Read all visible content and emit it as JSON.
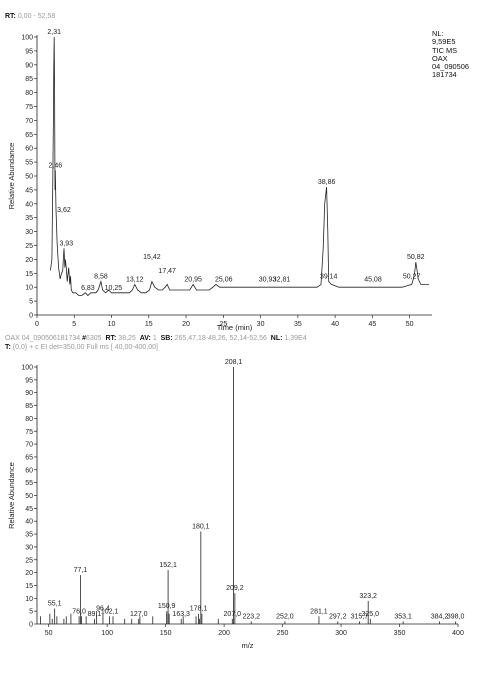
{
  "chromatogram": {
    "rt_label": "RT:",
    "rt_range": "0,00 - 52,58",
    "nl_info": [
      "NL:",
      "9,59E5",
      "TIC MS",
      "OAX",
      "04_090506",
      "181734"
    ]
  },
  "spectrum": {
    "line1": {
      "file": "OAX 04_090506181734",
      "scan_prefix": "#",
      "scan": "6305",
      "rt_label": "RT:",
      "rt": "38,25",
      "av_label": "AV:",
      "av": "1",
      "sb_label": "SB:",
      "sb": "265,47,18-48,26, 52,14-52,56",
      "nl_label": "NL:",
      "nl": "1,39E4"
    },
    "line2": {
      "t_label": "T:",
      "filter": "{0,0} + c EI det=350,00 Full ms [ 40,00-400,00]"
    }
  },
  "chart_data": [
    {
      "type": "line",
      "title": "",
      "xlabel": "Time (min)",
      "ylabel": "Relative Abundance",
      "xlim": [
        0,
        53
      ],
      "ylim": [
        0,
        100
      ],
      "xticks": [
        0,
        5,
        10,
        15,
        20,
        25,
        30,
        35,
        40,
        45,
        50
      ],
      "yticks": [
        0,
        5,
        10,
        15,
        20,
        25,
        30,
        35,
        40,
        45,
        50,
        55,
        60,
        65,
        70,
        75,
        80,
        85,
        90,
        95,
        100
      ],
      "series": [
        {
          "x": [
            1.8,
            2.0,
            2.1,
            2.2,
            2.25,
            2.31,
            2.36,
            2.41,
            2.46,
            2.55,
            2.7,
            2.9,
            3.1,
            3.3,
            3.45,
            3.62,
            3.75,
            3.8,
            3.93,
            4.05,
            4.25,
            4.4,
            4.5,
            4.6,
            4.8,
            5.2,
            5.6,
            6.0,
            6.5,
            6.83,
            7.2,
            7.6,
            7.9,
            8.2,
            8.58,
            8.8,
            9.2,
            9.6,
            10.0,
            10.25,
            10.6,
            11.2,
            11.8,
            12.4,
            12.8,
            13.12,
            13.5,
            14.0,
            14.6,
            15.1,
            15.42,
            15.8,
            16.3,
            16.8,
            17.2,
            17.47,
            17.8,
            18.3,
            18.8,
            19.4,
            20.0,
            20.5,
            20.95,
            21.4,
            22.0,
            22.6,
            23.1,
            23.6,
            24.0,
            24.5,
            25.06,
            25.8,
            27.0,
            28.5,
            30.0,
            30.93,
            32.0,
            32.81,
            34.0,
            35.5,
            36.8,
            37.6,
            38.1,
            38.4,
            38.6,
            38.86,
            39.02,
            39.14,
            39.5,
            40.5,
            42.0,
            43.5,
            45.08,
            46.5,
            48.0,
            49.0,
            50.27,
            50.5,
            50.7,
            50.82,
            50.95,
            51.15,
            51.5,
            52.0,
            52.58
          ],
          "y": [
            16,
            20,
            45,
            70,
            90,
            100,
            80,
            45,
            52,
            38,
            26,
            17,
            13,
            15,
            16,
            24,
            17,
            20,
            17,
            12,
            17,
            11,
            14,
            9,
            8,
            8,
            7,
            7,
            8,
            7,
            8,
            8,
            8,
            9,
            12,
            9,
            8,
            9,
            8,
            8,
            8,
            8,
            8,
            8,
            9,
            11,
            9,
            8,
            8,
            9,
            12,
            10,
            9,
            9,
            10,
            11,
            9,
            9,
            9,
            9,
            9,
            9,
            11,
            9,
            9,
            9,
            9,
            10,
            11,
            10,
            10,
            10,
            10,
            10,
            10,
            10,
            10,
            10,
            10,
            10,
            10,
            10,
            11,
            24,
            40,
            46,
            30,
            12,
            11,
            10,
            10,
            10,
            10,
            10,
            10,
            10,
            11,
            13,
            16,
            19,
            17,
            13,
            11,
            11,
            11
          ]
        }
      ],
      "peak_labels": [
        {
          "x": 2.31,
          "y": 100,
          "label": "2,31"
        },
        {
          "x": 2.46,
          "y": 52,
          "label": "2,46"
        },
        {
          "x": 3.62,
          "y": 36,
          "label": "3,62"
        },
        {
          "x": 3.93,
          "y": 24,
          "label": "3,93"
        },
        {
          "x": 6.83,
          "y": 8,
          "label": "6,83"
        },
        {
          "x": 8.58,
          "y": 12,
          "label": "8,58"
        },
        {
          "x": 10.25,
          "y": 8,
          "label": "10,25"
        },
        {
          "x": 13.12,
          "y": 11,
          "label": "13,12"
        },
        {
          "x": 15.42,
          "y": 19,
          "label": "15,42"
        },
        {
          "x": 17.47,
          "y": 14,
          "label": "17,47"
        },
        {
          "x": 20.95,
          "y": 11,
          "label": "20,95"
        },
        {
          "x": 25.06,
          "y": 11,
          "label": "25,06"
        },
        {
          "x": 30.93,
          "y": 11,
          "label": "30,93"
        },
        {
          "x": 32.81,
          "y": 11,
          "label": "32,81"
        },
        {
          "x": 38.86,
          "y": 46,
          "label": "38,86"
        },
        {
          "x": 39.14,
          "y": 12,
          "label": "39,14"
        },
        {
          "x": 45.08,
          "y": 11,
          "label": "45,08"
        },
        {
          "x": 50.27,
          "y": 12,
          "label": "50,27"
        },
        {
          "x": 50.82,
          "y": 19,
          "label": "50,82"
        }
      ]
    },
    {
      "type": "bar",
      "title": "",
      "xlabel": "m/z",
      "ylabel": "Relative Abundance",
      "xlim": [
        40,
        400
      ],
      "ylim": [
        0,
        100
      ],
      "xticks": [
        50,
        100,
        150,
        200,
        250,
        300,
        350,
        400
      ],
      "yticks": [
        0,
        5,
        10,
        15,
        20,
        25,
        30,
        35,
        40,
        45,
        50,
        55,
        60,
        65,
        70,
        75,
        80,
        85,
        90,
        95,
        100
      ],
      "peaks": {
        "mz": [
          43,
          51,
          53,
          55.1,
          57,
          63,
          65,
          69,
          76.0,
          77.1,
          78,
          82,
          89.1,
          91,
          96.4,
          102.1,
          105,
          115,
          121,
          127.0,
          128,
          139,
          150.9,
          151,
          152.1,
          153,
          163.3,
          165,
          176,
          178.1,
          179,
          180.1,
          181,
          195,
          207.0,
          208.1,
          209.2,
          223.2,
          252.0,
          281.1,
          297.2,
          315.7,
          323.2,
          325.0,
          353.1,
          384.2,
          398.0
        ],
        "intensity": [
          3,
          4,
          2,
          6,
          3,
          2,
          3,
          4,
          3,
          19,
          3,
          3,
          2,
          5,
          4,
          3,
          3,
          2,
          2,
          2,
          3,
          3,
          4,
          5,
          21,
          4,
          2,
          3,
          3,
          4,
          2,
          36,
          4,
          2,
          2,
          100,
          12,
          1,
          1,
          3,
          1,
          1,
          9,
          2,
          1,
          1,
          1
        ]
      },
      "peak_labels": [
        {
          "x": 55.1,
          "y": 6,
          "label": "55,1"
        },
        {
          "x": 76.0,
          "y": 3,
          "label": "76,0"
        },
        {
          "x": 77.1,
          "y": 19,
          "label": "77,1"
        },
        {
          "x": 89.1,
          "y": 2,
          "label": "89,1"
        },
        {
          "x": 96.4,
          "y": 4,
          "label": "96,4"
        },
        {
          "x": 102.1,
          "y": 3,
          "label": "102,1"
        },
        {
          "x": 127.0,
          "y": 2,
          "label": "127,0"
        },
        {
          "x": 150.9,
          "y": 5,
          "label": "150,9"
        },
        {
          "x": 152.1,
          "y": 21,
          "label": "152,1"
        },
        {
          "x": 163.3,
          "y": 2,
          "label": "163,3"
        },
        {
          "x": 178.1,
          "y": 4,
          "label": "178,1"
        },
        {
          "x": 180.1,
          "y": 36,
          "label": "180,1"
        },
        {
          "x": 207.0,
          "y": 2,
          "label": "207,0"
        },
        {
          "x": 208.1,
          "y": 100,
          "label": "208,1"
        },
        {
          "x": 209.2,
          "y": 12,
          "label": "209,2"
        },
        {
          "x": 223.2,
          "y": 1,
          "label": "223,2"
        },
        {
          "x": 252.0,
          "y": 1,
          "label": "252,0"
        },
        {
          "x": 281.1,
          "y": 3,
          "label": "281,1"
        },
        {
          "x": 297.2,
          "y": 1,
          "label": "297,2"
        },
        {
          "x": 315.7,
          "y": 1,
          "label": "315,7"
        },
        {
          "x": 323.2,
          "y": 9,
          "label": "323,2"
        },
        {
          "x": 325.0,
          "y": 2,
          "label": "325,0"
        },
        {
          "x": 353.1,
          "y": 1,
          "label": "353,1"
        },
        {
          "x": 384.2,
          "y": 1,
          "label": "384,2"
        },
        {
          "x": 398.0,
          "y": 1,
          "label": "398,0"
        }
      ]
    }
  ]
}
